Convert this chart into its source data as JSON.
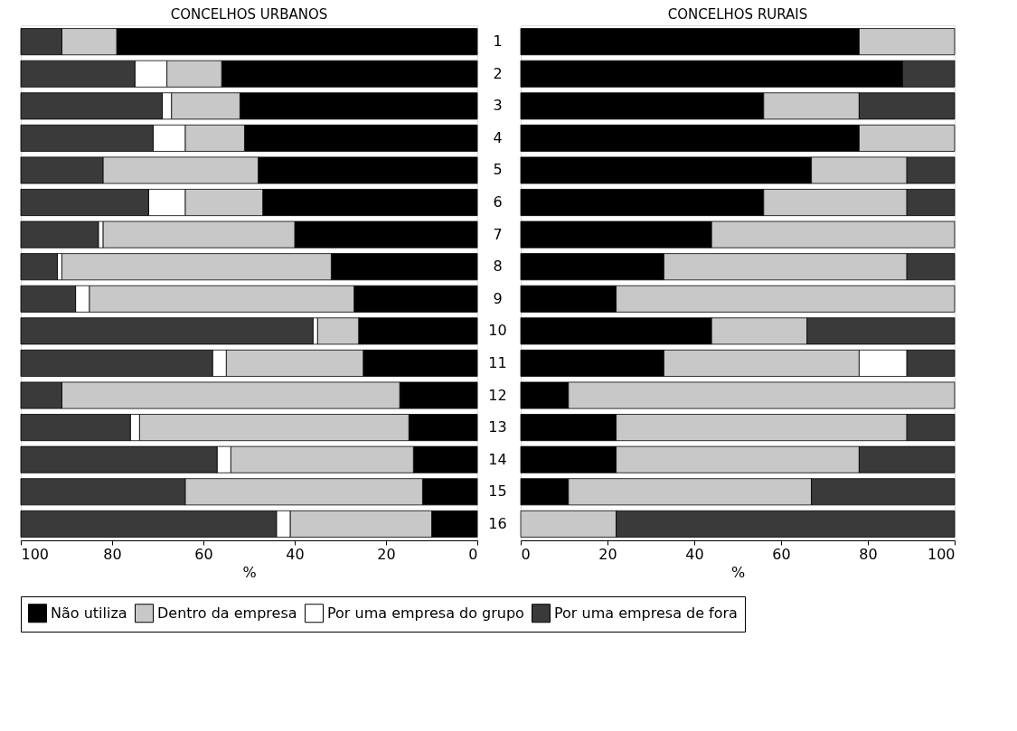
{
  "chart_data": [
    {
      "type": "bar",
      "orientation": "horizontal",
      "stacked": true,
      "title": "CONCELHOS URBANOS",
      "xlabel": "%",
      "categories": [
        "1",
        "2",
        "3",
        "4",
        "5",
        "6",
        "7",
        "8",
        "9",
        "10",
        "11",
        "12",
        "13",
        "14",
        "15",
        "16"
      ],
      "xlim": [
        100,
        0
      ],
      "xticks": [
        100,
        80,
        60,
        40,
        20,
        0
      ],
      "grid": false,
      "legend": "bottom",
      "series": [
        {
          "name": "Não utiliza",
          "color": "#000000",
          "values": [
            79,
            56,
            52,
            51,
            48,
            47,
            40,
            32,
            27,
            26,
            25,
            17,
            15,
            14,
            12,
            10
          ]
        },
        {
          "name": "Dentro da empresa",
          "color": "#c8c8c8",
          "values": [
            12,
            12,
            15,
            13,
            34,
            17,
            42,
            59,
            58,
            9,
            30,
            74,
            59,
            40,
            52,
            31
          ]
        },
        {
          "name": "Por uma empresa do grupo",
          "color": "#ffffff",
          "values": [
            0,
            7,
            2,
            7,
            0,
            8,
            1,
            1,
            3,
            1,
            3,
            0,
            2,
            3,
            0,
            3
          ]
        },
        {
          "name": "Por uma empresa de fora",
          "color": "#3a3a3a",
          "values": [
            9,
            25,
            31,
            29,
            18,
            28,
            17,
            8,
            12,
            64,
            42,
            9,
            24,
            43,
            36,
            56
          ]
        }
      ]
    },
    {
      "type": "bar",
      "orientation": "horizontal",
      "stacked": true,
      "title": "CONCELHOS RURAIS",
      "xlabel": "%",
      "categories": [
        "1",
        "2",
        "3",
        "4",
        "5",
        "6",
        "7",
        "8",
        "9",
        "10",
        "11",
        "12",
        "13",
        "14",
        "15",
        "16"
      ],
      "xlim": [
        0,
        100
      ],
      "xticks": [
        0,
        20,
        40,
        60,
        80,
        100
      ],
      "grid": false,
      "legend": "bottom",
      "tick_labels": "x",
      "series": [
        {
          "name": "Não utiliza",
          "color": "#000000",
          "values": [
            78,
            88,
            56,
            78,
            67,
            56,
            44,
            33,
            22,
            44,
            33,
            11,
            22,
            22,
            11,
            0
          ]
        },
        {
          "name": "Dentro da empresa",
          "color": "#c8c8c8",
          "values": [
            22,
            0,
            22,
            22,
            22,
            33,
            56,
            56,
            78,
            22,
            45,
            89,
            67,
            56,
            56,
            22
          ]
        },
        {
          "name": "Por uma empresa do grupo",
          "color": "#ffffff",
          "values": [
            0,
            0,
            0,
            0,
            0,
            0,
            0,
            0,
            0,
            0,
            11,
            0,
            0,
            0,
            0,
            0
          ]
        },
        {
          "name": "Por uma empresa de fora",
          "color": "#3a3a3a",
          "values": [
            0,
            12,
            22,
            0,
            11,
            11,
            0,
            11,
            0,
            34,
            11,
            0,
            11,
            22,
            33,
            78
          ]
        }
      ]
    }
  ]
}
